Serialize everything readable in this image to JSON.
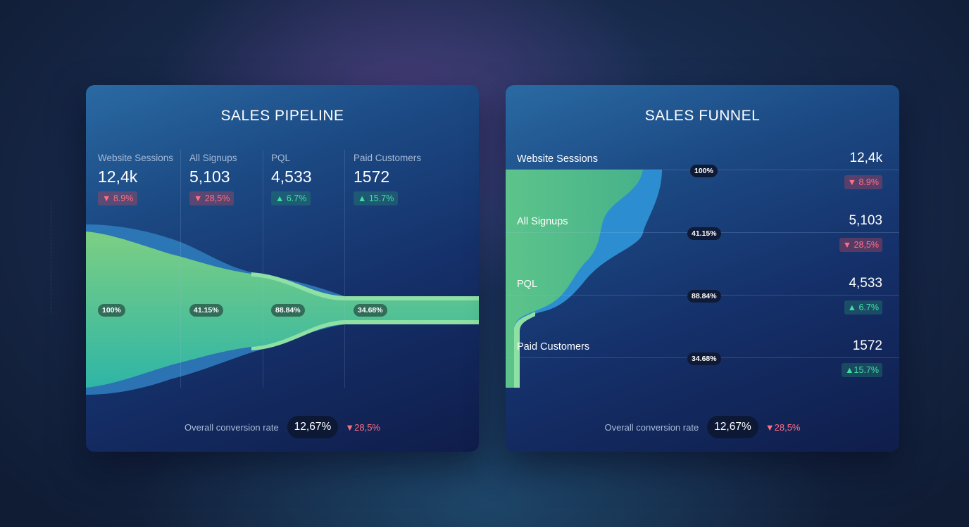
{
  "colors": {
    "accent_green": "#6fcf8f",
    "accent_blue": "#2a8ac8",
    "down": "#ff6e84",
    "up": "#3fe0a3"
  },
  "pipeline": {
    "title": "SALES PIPELINE",
    "stages": [
      {
        "label": "Website Sessions",
        "value": "12,4k",
        "change": "8.9%",
        "direction": "down",
        "rate": "100%"
      },
      {
        "label": "All Signups",
        "value": "5,103",
        "change": "28,5%",
        "direction": "down",
        "rate": "41.15%"
      },
      {
        "label": "PQL",
        "value": "4,533",
        "change": "6.7%",
        "direction": "up",
        "rate": "88.84%"
      },
      {
        "label": "Paid Customers",
        "value": "1572",
        "change": "15.7%",
        "direction": "up",
        "rate": "34.68%"
      }
    ],
    "footer": {
      "label": "Overall conversion rate",
      "value": "12,67%",
      "change": "28,5%"
    }
  },
  "funnel": {
    "title": "SALES FUNNEL",
    "stages": [
      {
        "label": "Website Sessions",
        "value": "12,4k",
        "change": "8.9%",
        "direction": "down",
        "rate": "100%"
      },
      {
        "label": "All Signups",
        "value": "5,103",
        "change": "28,5%",
        "direction": "down",
        "rate": "41.15%"
      },
      {
        "label": "PQL",
        "value": "4,533",
        "change": "6.7%",
        "direction": "up",
        "rate": "88.84%"
      },
      {
        "label": "Paid Customers",
        "value": "1572",
        "change": "15.7%",
        "direction": "up",
        "rate": "34.68%"
      }
    ],
    "footer": {
      "label": "Overall conversion rate",
      "value": "12,67%",
      "change": "28,5%"
    }
  },
  "chart_data": [
    {
      "type": "area",
      "title": "SALES PIPELINE",
      "categories": [
        "Website Sessions",
        "All Signups",
        "PQL",
        "Paid Customers"
      ],
      "series": [
        {
          "values": [
            100,
            41.15,
            88.84,
            34.68
          ]
        }
      ]
    },
    {
      "type": "area",
      "title": "SALES FUNNEL",
      "categories": [
        "Website Sessions",
        "All Signups",
        "PQL",
        "Paid Customers"
      ],
      "series": [
        {
          "values": [
            100,
            41.15,
            88.84,
            34.68
          ]
        }
      ]
    }
  ]
}
